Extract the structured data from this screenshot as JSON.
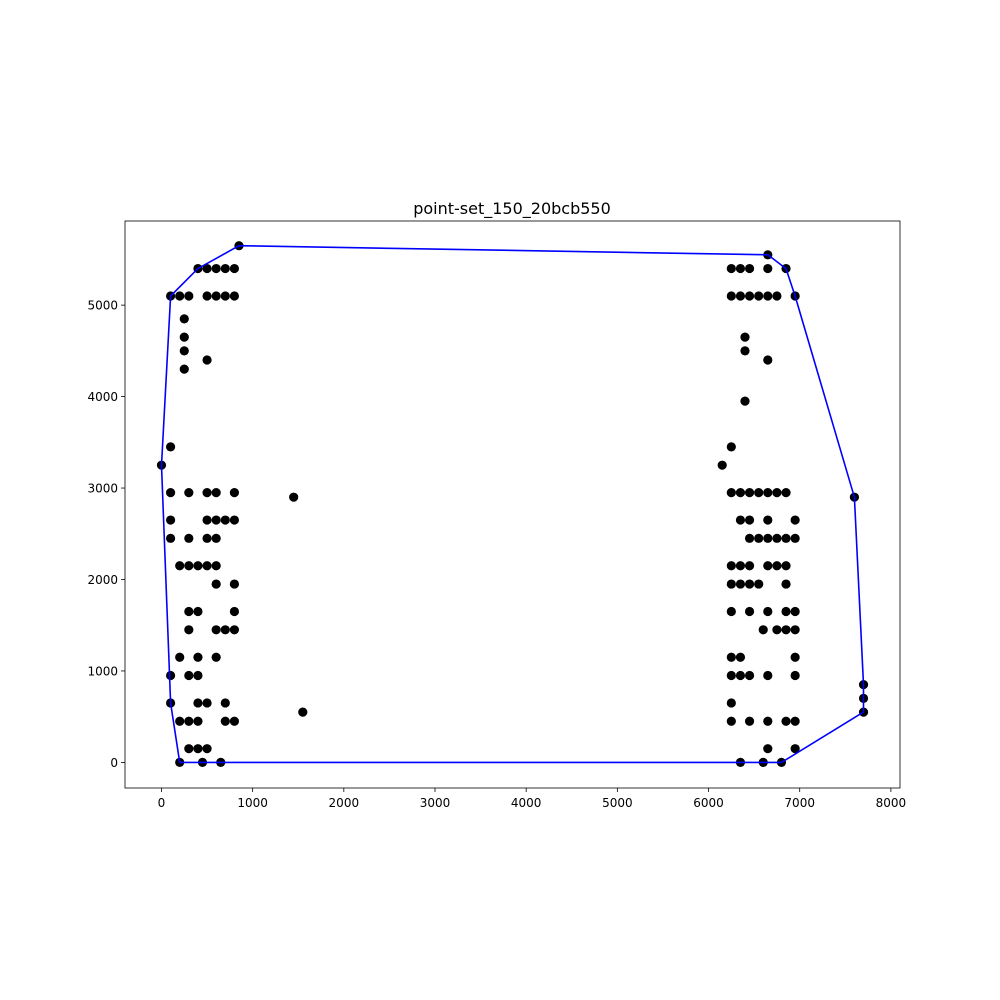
{
  "chart_data": {
    "type": "scatter",
    "title": "point-set_150_20bcb550",
    "xlabel": "",
    "ylabel": "",
    "xlim": [
      -400,
      8100
    ],
    "ylim": [
      -280,
      5920
    ],
    "xticks": [
      0,
      1000,
      2000,
      3000,
      4000,
      5000,
      6000,
      7000,
      8000
    ],
    "yticks": [
      0,
      1000,
      2000,
      3000,
      4000,
      5000
    ],
    "grid": false,
    "legend": "none",
    "colors": {
      "points": "#000000",
      "hull": "#0000ff"
    },
    "points": [
      [
        850,
        5650
      ],
      [
        400,
        5400
      ],
      [
        500,
        5400
      ],
      [
        600,
        5400
      ],
      [
        700,
        5400
      ],
      [
        800,
        5400
      ],
      [
        100,
        5100
      ],
      [
        200,
        5100
      ],
      [
        300,
        5100
      ],
      [
        500,
        5100
      ],
      [
        600,
        5100
      ],
      [
        700,
        5100
      ],
      [
        800,
        5100
      ],
      [
        250,
        4850
      ],
      [
        250,
        4650
      ],
      [
        250,
        4500
      ],
      [
        500,
        4400
      ],
      [
        250,
        4300
      ],
      [
        100,
        3450
      ],
      [
        0,
        3250
      ],
      [
        100,
        2950
      ],
      [
        300,
        2950
      ],
      [
        500,
        2950
      ],
      [
        600,
        2950
      ],
      [
        800,
        2950
      ],
      [
        1450,
        2900
      ],
      [
        100,
        2650
      ],
      [
        500,
        2650
      ],
      [
        600,
        2650
      ],
      [
        700,
        2650
      ],
      [
        800,
        2650
      ],
      [
        100,
        2450
      ],
      [
        300,
        2450
      ],
      [
        500,
        2450
      ],
      [
        600,
        2450
      ],
      [
        200,
        2150
      ],
      [
        300,
        2150
      ],
      [
        400,
        2150
      ],
      [
        500,
        2150
      ],
      [
        600,
        2150
      ],
      [
        600,
        1950
      ],
      [
        800,
        1950
      ],
      [
        300,
        1650
      ],
      [
        400,
        1650
      ],
      [
        800,
        1650
      ],
      [
        300,
        1450
      ],
      [
        600,
        1450
      ],
      [
        700,
        1450
      ],
      [
        800,
        1450
      ],
      [
        200,
        1150
      ],
      [
        400,
        1150
      ],
      [
        600,
        1150
      ],
      [
        100,
        950
      ],
      [
        300,
        950
      ],
      [
        400,
        950
      ],
      [
        100,
        650
      ],
      [
        400,
        650
      ],
      [
        500,
        650
      ],
      [
        700,
        650
      ],
      [
        1550,
        550
      ],
      [
        200,
        450
      ],
      [
        300,
        450
      ],
      [
        400,
        450
      ],
      [
        700,
        450
      ],
      [
        800,
        450
      ],
      [
        300,
        150
      ],
      [
        400,
        150
      ],
      [
        500,
        150
      ],
      [
        200,
        0
      ],
      [
        450,
        0
      ],
      [
        650,
        0
      ],
      [
        6650,
        5550
      ],
      [
        6250,
        5400
      ],
      [
        6350,
        5400
      ],
      [
        6450,
        5400
      ],
      [
        6650,
        5400
      ],
      [
        6850,
        5400
      ],
      [
        6250,
        5100
      ],
      [
        6350,
        5100
      ],
      [
        6450,
        5100
      ],
      [
        6550,
        5100
      ],
      [
        6650,
        5100
      ],
      [
        6750,
        5100
      ],
      [
        6950,
        5100
      ],
      [
        6400,
        4650
      ],
      [
        6400,
        4500
      ],
      [
        6650,
        4400
      ],
      [
        6400,
        3950
      ],
      [
        6250,
        3450
      ],
      [
        6150,
        3250
      ],
      [
        6250,
        2950
      ],
      [
        6350,
        2950
      ],
      [
        6450,
        2950
      ],
      [
        6550,
        2950
      ],
      [
        6650,
        2950
      ],
      [
        6750,
        2950
      ],
      [
        6850,
        2950
      ],
      [
        7600,
        2900
      ],
      [
        6350,
        2650
      ],
      [
        6450,
        2650
      ],
      [
        6650,
        2650
      ],
      [
        6950,
        2650
      ],
      [
        6450,
        2450
      ],
      [
        6550,
        2450
      ],
      [
        6650,
        2450
      ],
      [
        6750,
        2450
      ],
      [
        6850,
        2450
      ],
      [
        6950,
        2450
      ],
      [
        6250,
        2150
      ],
      [
        6350,
        2150
      ],
      [
        6450,
        2150
      ],
      [
        6650,
        2150
      ],
      [
        6750,
        2150
      ],
      [
        6850,
        2150
      ],
      [
        6250,
        1950
      ],
      [
        6350,
        1950
      ],
      [
        6450,
        1950
      ],
      [
        6550,
        1950
      ],
      [
        6850,
        1950
      ],
      [
        6250,
        1650
      ],
      [
        6450,
        1650
      ],
      [
        6650,
        1650
      ],
      [
        6850,
        1650
      ],
      [
        6950,
        1650
      ],
      [
        6600,
        1450
      ],
      [
        6750,
        1450
      ],
      [
        6850,
        1450
      ],
      [
        6950,
        1450
      ],
      [
        6250,
        1150
      ],
      [
        6350,
        1150
      ],
      [
        6950,
        1150
      ],
      [
        6250,
        950
      ],
      [
        6350,
        950
      ],
      [
        6450,
        950
      ],
      [
        6650,
        950
      ],
      [
        6950,
        950
      ],
      [
        7700,
        850
      ],
      [
        7700,
        700
      ],
      [
        6250,
        650
      ],
      [
        7700,
        550
      ],
      [
        6250,
        450
      ],
      [
        6450,
        450
      ],
      [
        6650,
        450
      ],
      [
        6850,
        450
      ],
      [
        6950,
        450
      ],
      [
        6650,
        150
      ],
      [
        6950,
        150
      ],
      [
        6350,
        0
      ],
      [
        6600,
        0
      ],
      [
        6800,
        0
      ]
    ],
    "hull": [
      [
        200,
        0
      ],
      [
        6800,
        0
      ],
      [
        7700,
        550
      ],
      [
        7700,
        850
      ],
      [
        7600,
        2900
      ],
      [
        6950,
        5100
      ],
      [
        6850,
        5400
      ],
      [
        6650,
        5550
      ],
      [
        850,
        5650
      ],
      [
        400,
        5400
      ],
      [
        100,
        5100
      ],
      [
        0,
        3250
      ],
      [
        100,
        650
      ],
      [
        200,
        0
      ]
    ]
  }
}
